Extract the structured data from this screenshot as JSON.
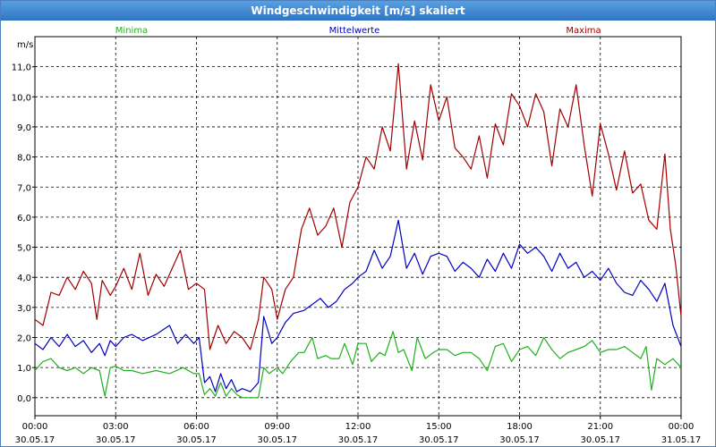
{
  "window": {
    "title": "Windgeschwindigkeit [m/s] skaliert"
  },
  "chart_data": {
    "type": "line",
    "title": "Windgeschwindigkeit [m/s] skaliert",
    "ylabel": "m/s",
    "xlabel": "",
    "ylim": [
      -0.6,
      12.0
    ],
    "xlim": [
      0,
      24
    ],
    "grid": true,
    "yticks": [
      "0,0",
      "1,0",
      "2,0",
      "3,0",
      "4,0",
      "5,0",
      "6,0",
      "7,0",
      "8,0",
      "9,0",
      "10,0",
      "11,0"
    ],
    "xticks": [
      {
        "time": "00:00",
        "date": "30.05.17"
      },
      {
        "time": "03:00",
        "date": "30.05.17"
      },
      {
        "time": "06:00",
        "date": "30.05.17"
      },
      {
        "time": "09:00",
        "date": "30.05.17"
      },
      {
        "time": "12:00",
        "date": "30.05.17"
      },
      {
        "time": "15:00",
        "date": "30.05.17"
      },
      {
        "time": "18:00",
        "date": "30.05.17"
      },
      {
        "time": "21:00",
        "date": "30.05.17"
      },
      {
        "time": "00:00",
        "date": "31.05.17"
      }
    ],
    "series": [
      {
        "name": "Minima",
        "color": "#1fb01f",
        "values": [
          [
            0.0,
            0.9
          ],
          [
            0.3,
            1.2
          ],
          [
            0.6,
            1.3
          ],
          [
            0.9,
            1.0
          ],
          [
            1.2,
            0.9
          ],
          [
            1.5,
            1.0
          ],
          [
            1.8,
            0.8
          ],
          [
            2.1,
            1.0
          ],
          [
            2.4,
            0.9
          ],
          [
            2.6,
            0.05
          ],
          [
            2.8,
            1.0
          ],
          [
            3.0,
            1.05
          ],
          [
            3.3,
            0.9
          ],
          [
            3.6,
            0.9
          ],
          [
            4.0,
            0.8
          ],
          [
            4.5,
            0.9
          ],
          [
            5.0,
            0.8
          ],
          [
            5.5,
            1.0
          ],
          [
            5.9,
            0.8
          ],
          [
            6.1,
            0.8
          ],
          [
            6.3,
            0.1
          ],
          [
            6.5,
            0.3
          ],
          [
            6.7,
            0.05
          ],
          [
            6.9,
            0.5
          ],
          [
            7.1,
            0.05
          ],
          [
            7.3,
            0.3
          ],
          [
            7.5,
            0.1
          ],
          [
            7.7,
            0.0
          ],
          [
            8.0,
            0.0
          ],
          [
            8.3,
            0.0
          ],
          [
            8.5,
            1.0
          ],
          [
            8.7,
            0.8
          ],
          [
            9.0,
            1.0
          ],
          [
            9.2,
            0.8
          ],
          [
            9.5,
            1.2
          ],
          [
            9.8,
            1.5
          ],
          [
            10.0,
            1.5
          ],
          [
            10.3,
            2.0
          ],
          [
            10.5,
            1.3
          ],
          [
            10.8,
            1.4
          ],
          [
            11.0,
            1.3
          ],
          [
            11.3,
            1.3
          ],
          [
            11.5,
            1.8
          ],
          [
            11.8,
            1.1
          ],
          [
            12.0,
            1.8
          ],
          [
            12.3,
            1.8
          ],
          [
            12.5,
            1.2
          ],
          [
            12.8,
            1.5
          ],
          [
            13.0,
            1.4
          ],
          [
            13.3,
            2.2
          ],
          [
            13.5,
            1.5
          ],
          [
            13.7,
            1.6
          ],
          [
            14.0,
            0.9
          ],
          [
            14.2,
            2.0
          ],
          [
            14.5,
            1.3
          ],
          [
            14.8,
            1.5
          ],
          [
            15.0,
            1.6
          ],
          [
            15.3,
            1.6
          ],
          [
            15.6,
            1.4
          ],
          [
            15.9,
            1.5
          ],
          [
            16.2,
            1.5
          ],
          [
            16.5,
            1.3
          ],
          [
            16.8,
            0.9
          ],
          [
            17.1,
            1.7
          ],
          [
            17.4,
            1.8
          ],
          [
            17.7,
            1.2
          ],
          [
            18.0,
            1.6
          ],
          [
            18.3,
            1.7
          ],
          [
            18.6,
            1.4
          ],
          [
            18.9,
            2.0
          ],
          [
            19.2,
            1.6
          ],
          [
            19.5,
            1.3
          ],
          [
            19.8,
            1.5
          ],
          [
            20.1,
            1.6
          ],
          [
            20.4,
            1.7
          ],
          [
            20.7,
            1.9
          ],
          [
            21.0,
            1.5
          ],
          [
            21.3,
            1.6
          ],
          [
            21.6,
            1.6
          ],
          [
            21.9,
            1.7
          ],
          [
            22.2,
            1.5
          ],
          [
            22.5,
            1.3
          ],
          [
            22.7,
            1.7
          ],
          [
            22.9,
            0.25
          ],
          [
            23.1,
            1.3
          ],
          [
            23.4,
            1.1
          ],
          [
            23.7,
            1.3
          ],
          [
            24.0,
            1.0
          ]
        ]
      },
      {
        "name": "Mittelwerte",
        "color": "#0000c0",
        "values": [
          [
            0.0,
            1.8
          ],
          [
            0.3,
            1.6
          ],
          [
            0.6,
            2.0
          ],
          [
            0.9,
            1.7
          ],
          [
            1.2,
            2.1
          ],
          [
            1.5,
            1.7
          ],
          [
            1.8,
            1.9
          ],
          [
            2.1,
            1.5
          ],
          [
            2.4,
            1.8
          ],
          [
            2.6,
            1.4
          ],
          [
            2.8,
            1.9
          ],
          [
            3.0,
            1.7
          ],
          [
            3.3,
            2.0
          ],
          [
            3.6,
            2.1
          ],
          [
            4.0,
            1.9
          ],
          [
            4.5,
            2.1
          ],
          [
            5.0,
            2.4
          ],
          [
            5.3,
            1.8
          ],
          [
            5.6,
            2.1
          ],
          [
            5.9,
            1.8
          ],
          [
            6.1,
            2.0
          ],
          [
            6.3,
            0.5
          ],
          [
            6.5,
            0.7
          ],
          [
            6.7,
            0.2
          ],
          [
            6.9,
            0.8
          ],
          [
            7.1,
            0.3
          ],
          [
            7.3,
            0.6
          ],
          [
            7.5,
            0.2
          ],
          [
            7.7,
            0.3
          ],
          [
            8.0,
            0.2
          ],
          [
            8.3,
            0.5
          ],
          [
            8.5,
            2.7
          ],
          [
            8.8,
            1.8
          ],
          [
            9.0,
            2.0
          ],
          [
            9.3,
            2.5
          ],
          [
            9.6,
            2.8
          ],
          [
            10.0,
            2.9
          ],
          [
            10.3,
            3.1
          ],
          [
            10.6,
            3.3
          ],
          [
            10.9,
            3.0
          ],
          [
            11.2,
            3.2
          ],
          [
            11.5,
            3.6
          ],
          [
            11.8,
            3.8
          ],
          [
            12.0,
            4.0
          ],
          [
            12.3,
            4.2
          ],
          [
            12.6,
            4.9
          ],
          [
            12.9,
            4.3
          ],
          [
            13.2,
            4.7
          ],
          [
            13.5,
            5.9
          ],
          [
            13.8,
            4.3
          ],
          [
            14.1,
            4.8
          ],
          [
            14.4,
            4.1
          ],
          [
            14.7,
            4.7
          ],
          [
            15.0,
            4.8
          ],
          [
            15.3,
            4.7
          ],
          [
            15.6,
            4.2
          ],
          [
            15.9,
            4.5
          ],
          [
            16.2,
            4.3
          ],
          [
            16.5,
            4.0
          ],
          [
            16.8,
            4.6
          ],
          [
            17.1,
            4.2
          ],
          [
            17.4,
            4.8
          ],
          [
            17.7,
            4.3
          ],
          [
            18.0,
            5.1
          ],
          [
            18.3,
            4.8
          ],
          [
            18.6,
            5.0
          ],
          [
            18.9,
            4.7
          ],
          [
            19.2,
            4.2
          ],
          [
            19.5,
            4.8
          ],
          [
            19.8,
            4.3
          ],
          [
            20.1,
            4.5
          ],
          [
            20.4,
            4.0
          ],
          [
            20.7,
            4.2
          ],
          [
            21.0,
            3.9
          ],
          [
            21.3,
            4.3
          ],
          [
            21.6,
            3.8
          ],
          [
            21.9,
            3.5
          ],
          [
            22.2,
            3.4
          ],
          [
            22.5,
            3.9
          ],
          [
            22.8,
            3.6
          ],
          [
            23.1,
            3.2
          ],
          [
            23.4,
            3.8
          ],
          [
            23.7,
            2.4
          ],
          [
            24.0,
            1.7
          ]
        ]
      },
      {
        "name": "Maxima",
        "color": "#a00000",
        "values": [
          [
            0.0,
            2.6
          ],
          [
            0.3,
            2.4
          ],
          [
            0.6,
            3.5
          ],
          [
            0.9,
            3.4
          ],
          [
            1.2,
            4.0
          ],
          [
            1.5,
            3.6
          ],
          [
            1.8,
            4.2
          ],
          [
            2.1,
            3.8
          ],
          [
            2.3,
            2.6
          ],
          [
            2.5,
            3.9
          ],
          [
            2.8,
            3.4
          ],
          [
            3.0,
            3.7
          ],
          [
            3.3,
            4.3
          ],
          [
            3.6,
            3.6
          ],
          [
            3.9,
            4.8
          ],
          [
            4.2,
            3.4
          ],
          [
            4.5,
            4.1
          ],
          [
            4.8,
            3.7
          ],
          [
            5.1,
            4.3
          ],
          [
            5.4,
            4.9
          ],
          [
            5.7,
            3.6
          ],
          [
            6.0,
            3.8
          ],
          [
            6.3,
            3.6
          ],
          [
            6.5,
            1.6
          ],
          [
            6.8,
            2.4
          ],
          [
            7.1,
            1.8
          ],
          [
            7.4,
            2.2
          ],
          [
            7.7,
            2.0
          ],
          [
            8.0,
            1.6
          ],
          [
            8.3,
            2.6
          ],
          [
            8.5,
            4.0
          ],
          [
            8.8,
            3.6
          ],
          [
            9.0,
            2.6
          ],
          [
            9.3,
            3.6
          ],
          [
            9.6,
            4.0
          ],
          [
            9.9,
            5.6
          ],
          [
            10.2,
            6.3
          ],
          [
            10.5,
            5.4
          ],
          [
            10.8,
            5.7
          ],
          [
            11.1,
            6.3
          ],
          [
            11.4,
            5.0
          ],
          [
            11.7,
            6.5
          ],
          [
            12.0,
            7.0
          ],
          [
            12.3,
            8.0
          ],
          [
            12.6,
            7.6
          ],
          [
            12.9,
            9.0
          ],
          [
            13.2,
            8.2
          ],
          [
            13.5,
            11.1
          ],
          [
            13.8,
            7.6
          ],
          [
            14.1,
            9.2
          ],
          [
            14.4,
            7.9
          ],
          [
            14.7,
            10.4
          ],
          [
            15.0,
            9.2
          ],
          [
            15.3,
            10.0
          ],
          [
            15.6,
            8.3
          ],
          [
            15.9,
            8.0
          ],
          [
            16.2,
            7.6
          ],
          [
            16.5,
            8.7
          ],
          [
            16.8,
            7.3
          ],
          [
            17.1,
            9.1
          ],
          [
            17.4,
            8.4
          ],
          [
            17.7,
            10.1
          ],
          [
            18.0,
            9.7
          ],
          [
            18.3,
            9.0
          ],
          [
            18.6,
            10.1
          ],
          [
            18.9,
            9.5
          ],
          [
            19.2,
            7.7
          ],
          [
            19.5,
            9.6
          ],
          [
            19.8,
            9.0
          ],
          [
            20.1,
            10.4
          ],
          [
            20.4,
            8.4
          ],
          [
            20.7,
            6.7
          ],
          [
            21.0,
            9.1
          ],
          [
            21.3,
            8.1
          ],
          [
            21.6,
            6.9
          ],
          [
            21.9,
            8.2
          ],
          [
            22.2,
            6.8
          ],
          [
            22.5,
            7.1
          ],
          [
            22.8,
            5.9
          ],
          [
            23.1,
            5.6
          ],
          [
            23.4,
            8.1
          ],
          [
            23.6,
            5.6
          ],
          [
            23.8,
            4.4
          ],
          [
            24.0,
            2.7
          ]
        ]
      }
    ]
  }
}
